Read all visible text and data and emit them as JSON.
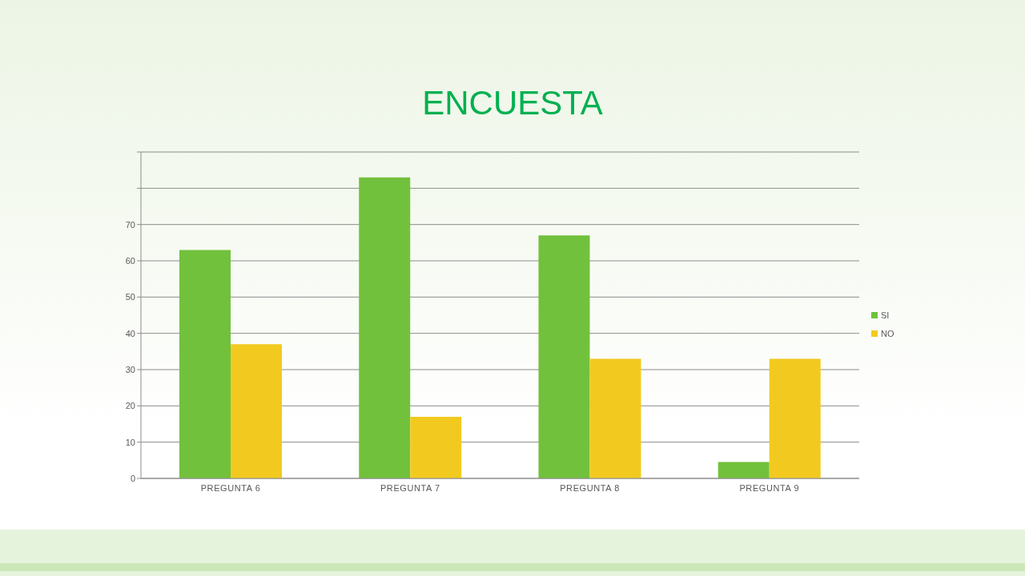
{
  "chart_data": {
    "type": "bar",
    "title": "ENCUESTA",
    "categories": [
      "PREGUNTA 6",
      "PREGUNTA 7",
      "PREGUNTA 8",
      "PREGUNTA 9"
    ],
    "series": [
      {
        "name": "SI",
        "color": "#72c13c",
        "values": [
          63,
          83,
          67,
          4.5
        ]
      },
      {
        "name": "NO",
        "color": "#f2ca1f",
        "values": [
          37,
          17,
          33,
          33
        ]
      }
    ],
    "ylim": [
      0,
      90
    ],
    "yticks": [
      0,
      10,
      20,
      30,
      40,
      50,
      60,
      70,
      {
        "value": 80,
        "label": null
      },
      {
        "value": 90,
        "label": null
      }
    ],
    "grid": "y",
    "legend": "right"
  }
}
